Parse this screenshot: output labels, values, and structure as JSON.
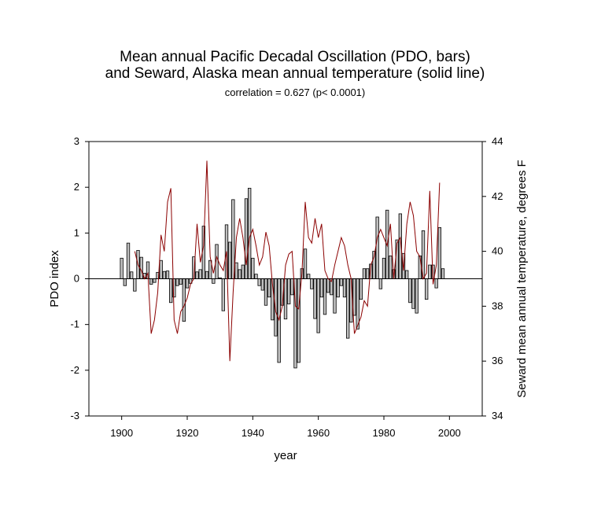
{
  "chart_data": {
    "type": "bar+line",
    "title_lines": [
      "Mean annual Pacific Decadal Oscillation (PDO, bars)",
      "and Seward, Alaska mean annual temperature (solid line)"
    ],
    "subtitle": "correlation = 0.627 (p< 0.0001)",
    "xlabel": "year",
    "ylabel_left": "PDO index",
    "ylabel_right": "Seward mean annual temperature, degrees F",
    "xlim": [
      1890,
      2010
    ],
    "ylim_left": [
      -3,
      3
    ],
    "ylim_right": [
      34,
      44
    ],
    "x_ticks": [
      1900,
      1920,
      1940,
      1960,
      1980,
      2000
    ],
    "y_left_ticks": [
      -3,
      -2,
      -1,
      0,
      1,
      2,
      3
    ],
    "y_right_ticks": [
      34,
      36,
      38,
      40,
      42,
      44
    ],
    "bar_fill": "#c0c0c0",
    "line_color": "#8b0000",
    "series": [
      {
        "name": "PDO",
        "kind": "bar",
        "x": [
          1900,
          1901,
          1902,
          1903,
          1904,
          1905,
          1906,
          1907,
          1908,
          1909,
          1910,
          1911,
          1912,
          1913,
          1914,
          1915,
          1916,
          1917,
          1918,
          1919,
          1920,
          1921,
          1922,
          1923,
          1924,
          1925,
          1926,
          1927,
          1928,
          1929,
          1930,
          1931,
          1932,
          1933,
          1934,
          1935,
          1936,
          1937,
          1938,
          1939,
          1940,
          1941,
          1942,
          1943,
          1944,
          1945,
          1946,
          1947,
          1948,
          1949,
          1950,
          1951,
          1952,
          1953,
          1954,
          1955,
          1956,
          1957,
          1958,
          1959,
          1960,
          1961,
          1962,
          1963,
          1964,
          1965,
          1966,
          1967,
          1968,
          1969,
          1970,
          1971,
          1972,
          1973,
          1974,
          1975,
          1976,
          1977,
          1978,
          1979,
          1980,
          1981,
          1982,
          1983,
          1984,
          1985,
          1986,
          1987,
          1988,
          1989,
          1990,
          1991,
          1992,
          1993,
          1994,
          1995,
          1996,
          1997,
          1998
        ],
        "values": [
          0.45,
          -0.15,
          0.78,
          0.15,
          -0.27,
          0.62,
          0.47,
          0.12,
          0.37,
          -0.12,
          -0.08,
          0.14,
          0.4,
          0.16,
          0.17,
          -0.52,
          -0.4,
          -0.15,
          -0.12,
          -0.93,
          -0.2,
          -0.1,
          0.48,
          0.15,
          0.2,
          1.15,
          0.16,
          0.4,
          -0.1,
          0.75,
          0.02,
          -0.7,
          1.18,
          0.8,
          1.73,
          0.35,
          0.2,
          0.3,
          1.75,
          1.98,
          0.45,
          0.1,
          -0.15,
          -0.25,
          -0.58,
          -0.4,
          -0.9,
          -1.25,
          -1.83,
          -0.58,
          -0.88,
          -0.55,
          -0.35,
          -1.95,
          -1.83,
          0.22,
          0.65,
          0.1,
          -0.22,
          -0.87,
          -1.18,
          -0.4,
          -0.78,
          -0.3,
          -0.35,
          -0.75,
          -0.4,
          -0.15,
          -0.4,
          -1.3,
          -0.95,
          -0.8,
          -1.1,
          -0.45,
          0.22,
          0.22,
          0.32,
          0.6,
          1.35,
          -0.22,
          0.45,
          1.5,
          0.5,
          0.2,
          0.85,
          1.42,
          0.55,
          0.18,
          -0.52,
          -0.65,
          -0.75,
          0.5,
          1.05,
          -0.45,
          0.3,
          0.3,
          -0.2,
          1.12,
          0.22
        ]
      },
      {
        "name": "Seward temperature",
        "kind": "line",
        "x": [
          1904,
          1905,
          1906,
          1907,
          1908,
          1909,
          1910,
          1911,
          1912,
          1913,
          1914,
          1915,
          1916,
          1917,
          1918,
          1919,
          1920,
          1921,
          1922,
          1923,
          1924,
          1925,
          1926,
          1927,
          1928,
          1929,
          1930,
          1931,
          1932,
          1933,
          1934,
          1935,
          1936,
          1937,
          1938,
          1939,
          1940,
          1941,
          1942,
          1943,
          1944,
          1945,
          1946,
          1947,
          1948,
          1949,
          1950,
          1951,
          1952,
          1953,
          1954,
          1955,
          1956,
          1957,
          1958,
          1959,
          1960,
          1961,
          1962,
          1963,
          1964,
          1965,
          1966,
          1967,
          1968,
          1969,
          1970,
          1971,
          1972,
          1973,
          1974,
          1975,
          1976,
          1977,
          1978,
          1979,
          1980,
          1981,
          1982,
          1983,
          1984,
          1985,
          1986,
          1987,
          1988,
          1989,
          1990,
          1991,
          1992,
          1993,
          1994,
          1995,
          1996,
          1997
        ],
        "values": [
          40,
          39.5,
          39.3,
          39,
          39.2,
          37,
          37.5,
          38.5,
          40.6,
          40.0,
          41.8,
          42.3,
          37.5,
          37,
          37.8,
          38,
          38.3,
          38.8,
          39,
          41,
          39.6,
          40.2,
          43.3,
          39.8,
          39.2,
          39.8,
          39.5,
          39.3,
          40.0,
          36,
          38.5,
          40.5,
          41.2,
          40.5,
          39.5,
          40.5,
          40.8,
          40.2,
          39.5,
          39.8,
          40.7,
          40.2,
          38.8,
          37.8,
          37.5,
          38,
          39.5,
          39.9,
          40.0,
          38,
          37.9,
          39.2,
          41.8,
          40.5,
          40.3,
          41.2,
          40.5,
          41.0,
          39.3,
          39.0,
          38.9,
          39.5,
          40,
          40.5,
          40.2,
          39.5,
          39.0,
          37.0,
          37.3,
          37.6,
          38.2,
          38,
          39.5,
          39.8,
          40.5,
          40.8,
          40.5,
          40.2,
          41.0,
          39.0,
          40.3,
          40.5,
          39.3,
          41.0,
          41.8,
          41.3,
          40.0,
          39.8,
          39.0,
          39.2,
          42.2,
          38.8,
          39.5,
          42.5
        ]
      }
    ]
  }
}
